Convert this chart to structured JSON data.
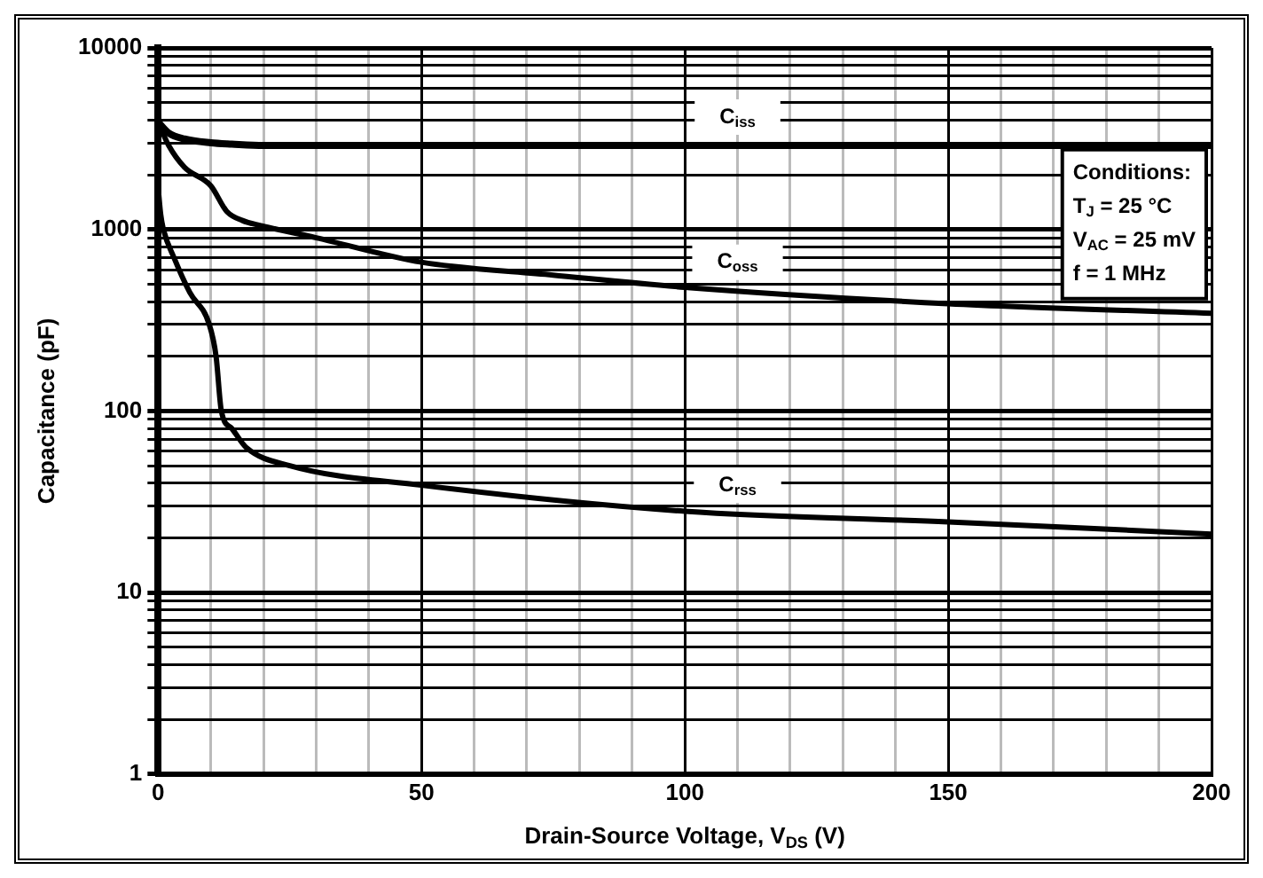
{
  "chart_data": {
    "type": "line",
    "xlabel": "Drain-Source Voltage, V$_{DS}$ (V)",
    "ylabel": "Capacitance (pF)",
    "log": "y",
    "grid": true,
    "legend": false,
    "marker": "none",
    "line_style": "solid",
    "xlim": [
      0,
      200
    ],
    "ylim": [
      1,
      10000
    ],
    "xticks": [
      0,
      {
        "value": 10,
        "label": null
      },
      {
        "value": 20,
        "label": null
      },
      {
        "value": 30,
        "label": null
      },
      {
        "value": 40,
        "label": null
      },
      50,
      {
        "value": 60,
        "label": null
      },
      {
        "value": 70,
        "label": null
      },
      {
        "value": 80,
        "label": null
      },
      {
        "value": 90,
        "label": null
      },
      100,
      {
        "value": 110,
        "label": null
      },
      {
        "value": 120,
        "label": null
      },
      {
        "value": 130,
        "label": null
      },
      {
        "value": 140,
        "label": null
      },
      150,
      {
        "value": 160,
        "label": null
      },
      {
        "value": 170,
        "label": null
      },
      {
        "value": 180,
        "label": null
      },
      {
        "value": 190,
        "label": null
      },
      200
    ],
    "yticks": [
      1,
      {
        "value": 2,
        "label": null
      },
      {
        "value": 3,
        "label": null
      },
      {
        "value": 4,
        "label": null
      },
      {
        "value": 5,
        "label": null
      },
      {
        "value": 6,
        "label": null
      },
      {
        "value": 7,
        "label": null
      },
      {
        "value": 8,
        "label": null
      },
      {
        "value": 9,
        "label": null
      },
      10,
      {
        "value": 20,
        "label": null
      },
      {
        "value": 30,
        "label": null
      },
      {
        "value": 40,
        "label": null
      },
      {
        "value": 50,
        "label": null
      },
      {
        "value": 60,
        "label": null
      },
      {
        "value": 70,
        "label": null
      },
      {
        "value": 80,
        "label": null
      },
      {
        "value": 90,
        "label": null
      },
      100,
      {
        "value": 200,
        "label": null
      },
      {
        "value": 300,
        "label": null
      },
      {
        "value": 400,
        "label": null
      },
      {
        "value": 500,
        "label": null
      },
      {
        "value": 600,
        "label": null
      },
      {
        "value": 700,
        "label": null
      },
      {
        "value": 800,
        "label": null
      },
      {
        "value": 900,
        "label": null
      },
      1000,
      {
        "value": 2000,
        "label": null
      },
      {
        "value": 3000,
        "label": null
      },
      {
        "value": 4000,
        "label": null
      },
      {
        "value": 5000,
        "label": null
      },
      {
        "value": 6000,
        "label": null
      },
      {
        "value": 7000,
        "label": null
      },
      {
        "value": 8000,
        "label": null
      },
      {
        "value": 9000,
        "label": null
      },
      10000
    ],
    "series": [
      {
        "name": "C$_{iss}$",
        "color": "#000000",
        "x": [
          0,
          2,
          5,
          10,
          14,
          20,
          50,
          100,
          150,
          200
        ],
        "values": [
          3900,
          3400,
          3150,
          3000,
          2950,
          2900,
          2900,
          2900,
          2900,
          2900
        ]
      },
      {
        "name": "C$_{oss}$",
        "color": "#000000",
        "x": [
          0,
          2,
          5,
          10,
          13,
          16,
          19.5,
          30,
          50,
          75,
          100,
          150,
          200
        ],
        "values": [
          3900,
          2900,
          2200,
          1740,
          1260,
          1120,
          1050,
          900,
          660,
          560,
          480,
          390,
          345
        ]
      },
      {
        "name": "C$_{rss}$",
        "color": "#000000",
        "x": [
          0,
          0.5,
          1,
          3,
          6,
          9.7,
          11,
          12,
          14,
          16.7,
          25,
          50,
          100,
          150,
          200
        ],
        "values": [
          1700,
          1200,
          1000,
          700,
          450,
          300,
          200,
          100,
          80,
          63,
          50,
          39,
          28,
          24.5,
          21
        ]
      }
    ],
    "annotations": [
      "Conditions:",
      "T$_{J}$ = 25 °C",
      "V$_{AC}$ = 25 mV",
      "f = 1 MHz"
    ]
  }
}
